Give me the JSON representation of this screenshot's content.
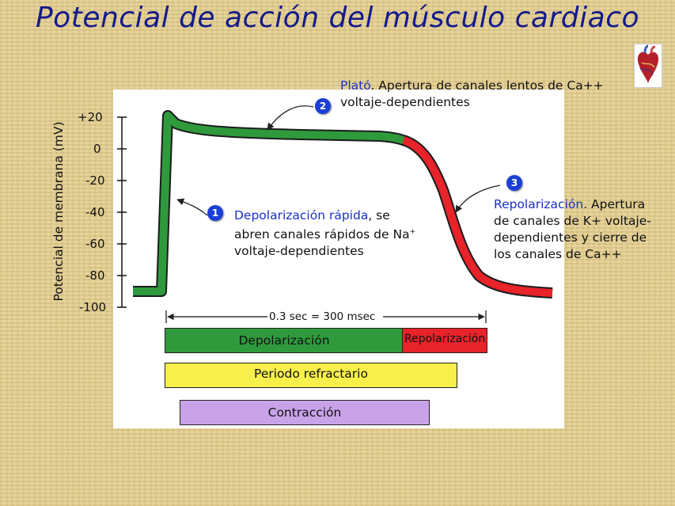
{
  "title": "Potencial de acción del músculo cardiaco",
  "y_axis": {
    "label": "Potencial de membrana (mV)",
    "ticks": [
      "+20",
      "0",
      "-20",
      "-40",
      "-60",
      "-80",
      "-100"
    ]
  },
  "duration_label": "0.3 sec = 300 msec",
  "phases": [
    {
      "number": "1",
      "keyword": "Depolarización rápida",
      "text_lines": [
        ", se",
        "abren canales rápidos de Na",
        "voltaje-dependientes"
      ],
      "superscript": "+"
    },
    {
      "number": "2",
      "keyword": "Plató",
      "text_lines": [
        ". Apertura de canales lentos de Ca++",
        "voltaje-dependientes"
      ]
    },
    {
      "number": "3",
      "keyword": "Repolarización",
      "text_lines": [
        ". Apertura",
        "de canales de K+ voltaje-",
        "dependientes y cierre de",
        "los canales de Ca++"
      ]
    }
  ],
  "bars": {
    "depolarization": "Depolarización",
    "repolarization": "Repolarización",
    "refractory": "Periodo refractario",
    "contraction": "Contracción"
  },
  "colors": {
    "title": "#141a8c",
    "keyword": "#1a2fc8",
    "depolarization_green": "#2e9a3c",
    "repolarization_red": "#e8232a",
    "refractory_yellow": "#f7f04a",
    "contraction_purple": "#c9a3e8",
    "badge_blue": "#1b3fd6"
  }
}
